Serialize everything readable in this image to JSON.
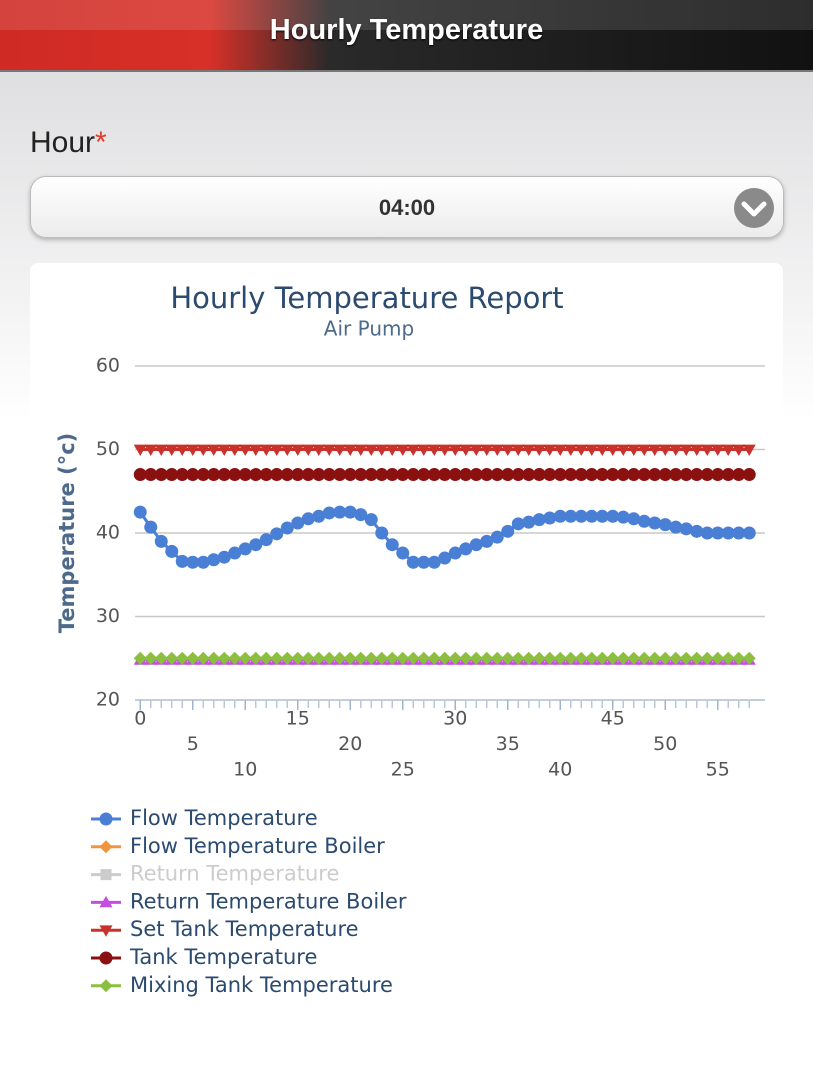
{
  "header": {
    "title": "Hourly Temperature"
  },
  "form": {
    "label": "Hour",
    "required": "*",
    "selected": "04:00"
  },
  "chart_data": {
    "type": "line",
    "title": "Hourly Temperature Report",
    "subtitle": "Air Pump",
    "y_label": "Temperature (°c)",
    "x": [
      0,
      1,
      2,
      3,
      4,
      5,
      6,
      7,
      8,
      9,
      10,
      11,
      12,
      13,
      14,
      15,
      16,
      17,
      18,
      19,
      20,
      21,
      22,
      23,
      24,
      25,
      26,
      27,
      28,
      29,
      30,
      31,
      32,
      33,
      34,
      35,
      36,
      37,
      38,
      39,
      40,
      41,
      42,
      43,
      44,
      45,
      46,
      47,
      48,
      49,
      50,
      51,
      52,
      53,
      54,
      55,
      56,
      57,
      58
    ],
    "xlim": [
      -0.5,
      59.5
    ],
    "xticks": [
      0,
      5,
      10,
      15,
      20,
      25,
      30,
      35,
      40,
      45,
      50,
      55
    ],
    "ylim": [
      20,
      60
    ],
    "yticks": [
      20,
      30,
      40,
      50,
      60
    ],
    "grid": true,
    "series": [
      {
        "name": "Flow Temperature",
        "color": "#4a7fd6",
        "marker": "circle",
        "values": [
          42.5,
          40.7,
          39.0,
          37.8,
          36.6,
          36.5,
          36.5,
          36.8,
          37.1,
          37.6,
          38.1,
          38.6,
          39.2,
          39.9,
          40.6,
          41.2,
          41.7,
          42.0,
          42.4,
          42.5,
          42.5,
          42.2,
          41.6,
          40.0,
          38.6,
          37.6,
          36.5,
          36.5,
          36.5,
          37.0,
          37.6,
          38.1,
          38.6,
          39.0,
          39.5,
          40.2,
          41.1,
          41.3,
          41.6,
          41.8,
          42.0,
          42.0,
          42.0,
          42.0,
          42.0,
          42.0,
          41.9,
          41.7,
          41.4,
          41.2,
          41.0,
          40.7,
          40.5,
          40.2,
          40.0,
          40.0,
          40.0,
          40.0,
          40.0
        ]
      },
      {
        "name": "Flow Temperature Boiler",
        "color": "#f0953c",
        "marker": "diamond",
        "values": [
          null,
          null,
          null,
          null,
          null,
          null,
          null,
          null,
          null,
          null,
          null,
          null,
          null,
          null,
          null,
          null,
          null,
          null,
          null,
          null,
          null,
          null,
          null,
          null,
          null,
          null,
          null,
          null,
          null,
          null,
          null,
          null,
          null,
          null,
          null,
          null,
          null,
          null,
          null,
          null,
          null,
          null,
          null,
          null,
          null,
          null,
          null,
          null,
          null,
          null,
          null,
          null,
          null,
          null,
          null,
          null,
          null,
          null,
          null
        ]
      },
      {
        "name": "Return Temperature",
        "color": "#a5a5a5",
        "marker": "square",
        "visible": false,
        "values": [
          null,
          null,
          null,
          null,
          null,
          null,
          null,
          null,
          null,
          null,
          null,
          null,
          null,
          null,
          null,
          null,
          null,
          null,
          null,
          null,
          null,
          null,
          null,
          null,
          null,
          null,
          null,
          null,
          null,
          null,
          null,
          null,
          null,
          null,
          null,
          null,
          null,
          null,
          null,
          null,
          null,
          null,
          null,
          null,
          null,
          null,
          null,
          null,
          null,
          null,
          null,
          null,
          null,
          null,
          null,
          null,
          null,
          null,
          null
        ]
      },
      {
        "name": "Return Temperature Boiler",
        "color": "#c44ee0",
        "marker": "triangle",
        "values": [
          24.8,
          24.8,
          24.8,
          24.8,
          24.8,
          24.8,
          24.8,
          24.8,
          24.8,
          24.8,
          24.8,
          24.8,
          24.8,
          24.8,
          24.8,
          24.8,
          24.8,
          24.8,
          24.8,
          24.8,
          24.8,
          24.8,
          24.8,
          24.8,
          24.8,
          24.8,
          24.8,
          24.8,
          24.8,
          24.8,
          24.8,
          24.8,
          24.8,
          24.8,
          24.8,
          24.8,
          24.8,
          24.8,
          24.8,
          24.8,
          24.8,
          24.8,
          24.8,
          24.8,
          24.8,
          24.8,
          24.8,
          24.8,
          24.8,
          24.8,
          24.8,
          24.8,
          24.8,
          24.8,
          24.8,
          24.8,
          24.8,
          24.8,
          24.8
        ]
      },
      {
        "name": "Set Tank Temperature",
        "color": "#c8322b",
        "marker": "triangle-down",
        "values": [
          50,
          50,
          50,
          50,
          50,
          50,
          50,
          50,
          50,
          50,
          50,
          50,
          50,
          50,
          50,
          50,
          50,
          50,
          50,
          50,
          50,
          50,
          50,
          50,
          50,
          50,
          50,
          50,
          50,
          50,
          50,
          50,
          50,
          50,
          50,
          50,
          50,
          50,
          50,
          50,
          50,
          50,
          50,
          50,
          50,
          50,
          50,
          50,
          50,
          50,
          50,
          50,
          50,
          50,
          50,
          50,
          50,
          50,
          50
        ]
      },
      {
        "name": "Tank Temperature",
        "color": "#8b1010",
        "marker": "circle",
        "values": [
          47,
          47,
          47,
          47,
          47,
          47,
          47,
          47,
          47,
          47,
          47,
          47,
          47,
          47,
          47,
          47,
          47,
          47,
          47,
          47,
          47,
          47,
          47,
          47,
          47,
          47,
          47,
          47,
          47,
          47,
          47,
          47,
          47,
          47,
          47,
          47,
          47,
          47,
          47,
          47,
          47,
          47,
          47,
          47,
          47,
          47,
          47,
          47,
          47,
          47,
          47,
          47,
          47,
          47,
          47,
          47,
          47,
          47,
          47
        ]
      },
      {
        "name": "Mixing Tank Temperature",
        "color": "#8cbf3f",
        "marker": "diamond",
        "values": [
          25,
          25,
          25,
          25,
          25,
          25,
          25,
          25,
          25,
          25,
          25,
          25,
          25,
          25,
          25,
          25,
          25,
          25,
          25,
          25,
          25,
          25,
          25,
          25,
          25,
          25,
          25,
          25,
          25,
          25,
          25,
          25,
          25,
          25,
          25,
          25,
          25,
          25,
          25,
          25,
          25,
          25,
          25,
          25,
          25,
          25,
          25,
          25,
          25,
          25,
          25,
          25,
          25,
          25,
          25,
          25,
          25,
          25,
          25
        ]
      }
    ]
  }
}
